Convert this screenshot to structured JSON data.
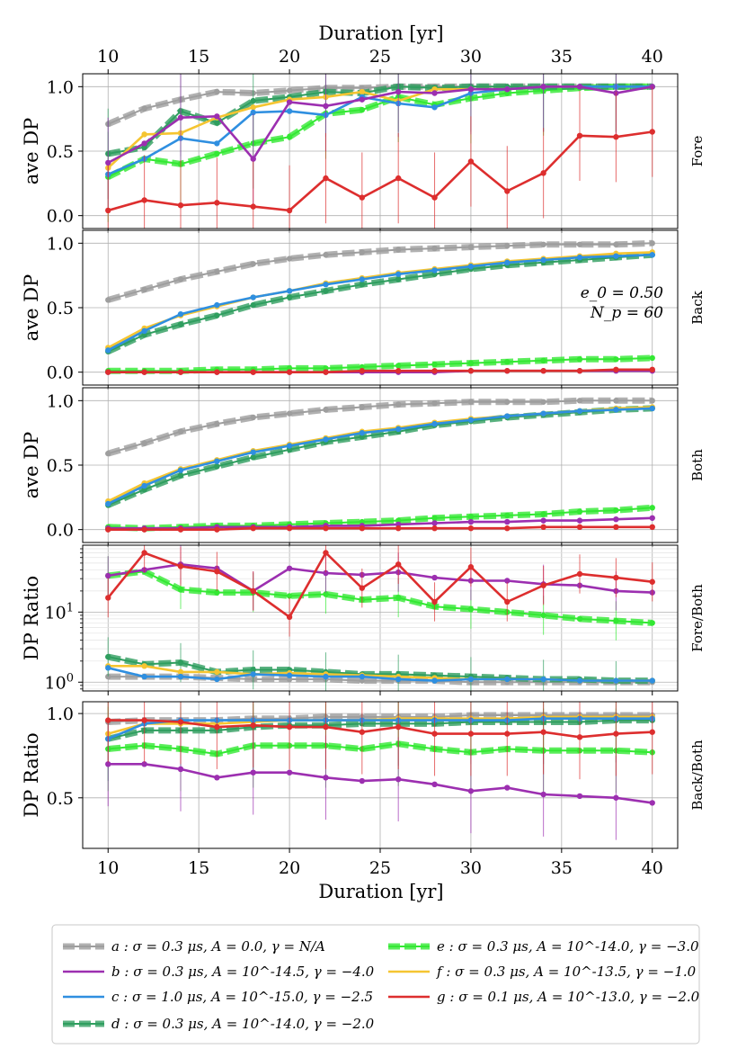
{
  "chart_data": {
    "type": "line",
    "x_label_top": "Duration [yr]",
    "x_label_bottom": "Duration [yr]",
    "x_ticks": [
      "10",
      "15",
      "20",
      "25",
      "30",
      "35",
      "40"
    ],
    "xlim": [
      8.6,
      41.4
    ],
    "x": [
      10,
      12,
      14,
      16,
      18,
      20,
      22,
      24,
      26,
      28,
      30,
      32,
      34,
      36,
      38,
      40
    ],
    "annotation": {
      "line1": "e_0 = 0.50",
      "line2": "N_p = 60"
    },
    "legend": [
      {
        "key": "a",
        "label": "a : σ = 0.3 μs, A = 0.0, γ = N/A",
        "color": "#9e9e9e",
        "style": "dashed-thick"
      },
      {
        "key": "b",
        "label": "b : σ = 0.3 μs, A = 10^-14.5, γ = −4.0",
        "color": "#9c2fb0",
        "style": "solid"
      },
      {
        "key": "c",
        "label": "c : σ = 1.0 μs, A = 10^-15.0, γ = −2.5",
        "color": "#2f8fe0",
        "style": "solid"
      },
      {
        "key": "d",
        "label": "d : σ = 0.3 μs, A = 10^-14.0, γ = −2.0",
        "color": "#2f9e5f",
        "style": "dashed-thick"
      },
      {
        "key": "e",
        "label": "e : σ = 0.3 μs, A = 10^-14.0, γ = −3.0",
        "color": "#33e833",
        "style": "dashed-thick"
      },
      {
        "key": "f",
        "label": "f : σ = 0.3 μs, A = 10^-13.5, γ = −1.0",
        "color": "#f5c531",
        "style": "solid"
      },
      {
        "key": "g",
        "label": "g : σ = 0.1 μs, A = 10^-13.0, γ = −2.0",
        "color": "#dd2e2e",
        "style": "solid"
      }
    ],
    "panels": [
      {
        "side_label": "Fore",
        "ylabel": "ave DP",
        "scale": "linear",
        "ylim": [
          -0.1,
          1.1
        ],
        "y_ticks": [
          0.0,
          0.5,
          1.0
        ],
        "y_tick_labels": [
          "0.0",
          "0.5",
          "1.0"
        ],
        "series": {
          "a": [
            0.71,
            0.83,
            0.9,
            0.96,
            0.95,
            0.97,
            0.99,
            0.99,
            1.0,
            1.0,
            1.0,
            1.0,
            1.0,
            1.0,
            1.0,
            1.0
          ],
          "b": [
            0.41,
            0.56,
            0.76,
            0.77,
            0.44,
            0.88,
            0.85,
            0.9,
            0.96,
            0.95,
            0.98,
            0.98,
            1.0,
            1.0,
            0.95,
            1.0
          ],
          "c": [
            0.32,
            0.44,
            0.6,
            0.56,
            0.8,
            0.81,
            0.78,
            0.92,
            0.87,
            0.84,
            0.95,
            0.98,
            1.0,
            1.0,
            1.0,
            1.0
          ],
          "d": [
            0.48,
            0.53,
            0.81,
            0.72,
            0.89,
            0.92,
            0.96,
            0.95,
            1.0,
            0.99,
            1.0,
            1.0,
            1.0,
            1.0,
            1.0,
            1.0
          ],
          "e": [
            0.3,
            0.44,
            0.4,
            0.48,
            0.56,
            0.61,
            0.79,
            0.82,
            0.92,
            0.86,
            0.91,
            0.95,
            0.97,
            0.99,
            1.0,
            1.0
          ],
          "f": [
            0.37,
            0.63,
            0.64,
            0.76,
            0.84,
            0.9,
            0.92,
            0.96,
            0.89,
            0.98,
            0.98,
            0.98,
            1.0,
            1.0,
            1.0,
            1.0
          ],
          "g": [
            0.04,
            0.12,
            0.08,
            0.1,
            0.07,
            0.04,
            0.29,
            0.14,
            0.29,
            0.14,
            0.42,
            0.19,
            0.33,
            0.62,
            0.61,
            0.65
          ]
        }
      },
      {
        "side_label": "Back",
        "ylabel": "ave DP",
        "scale": "linear",
        "ylim": [
          -0.1,
          1.1
        ],
        "y_ticks": [
          0.0,
          0.5,
          1.0
        ],
        "y_tick_labels": [
          "0.0",
          "0.5",
          "1.0"
        ],
        "series": {
          "a": [
            0.56,
            0.64,
            0.72,
            0.78,
            0.84,
            0.88,
            0.91,
            0.93,
            0.95,
            0.96,
            0.97,
            0.98,
            0.99,
            0.99,
            0.99,
            1.0
          ],
          "b": [
            0.0,
            0.0,
            0.0,
            0.0,
            0.0,
            0.0,
            0.0,
            0.0,
            0.0,
            0.0,
            0.01,
            0.01,
            0.01,
            0.01,
            0.01,
            0.01
          ],
          "c": [
            0.17,
            0.32,
            0.45,
            0.52,
            0.58,
            0.63,
            0.68,
            0.72,
            0.76,
            0.79,
            0.82,
            0.85,
            0.87,
            0.89,
            0.9,
            0.91
          ],
          "d": [
            0.16,
            0.29,
            0.37,
            0.44,
            0.52,
            0.58,
            0.63,
            0.68,
            0.72,
            0.76,
            0.8,
            0.83,
            0.85,
            0.87,
            0.89,
            0.91
          ],
          "e": [
            0.01,
            0.01,
            0.01,
            0.02,
            0.02,
            0.03,
            0.03,
            0.04,
            0.05,
            0.06,
            0.07,
            0.08,
            0.09,
            0.1,
            0.1,
            0.11
          ],
          "f": [
            0.19,
            0.34,
            0.44,
            0.51,
            0.58,
            0.63,
            0.69,
            0.73,
            0.77,
            0.8,
            0.83,
            0.86,
            0.88,
            0.9,
            0.92,
            0.93
          ],
          "g": [
            0.0,
            0.0,
            0.0,
            0.0,
            0.0,
            0.0,
            0.0,
            0.01,
            0.01,
            0.01,
            0.01,
            0.01,
            0.01,
            0.01,
            0.02,
            0.02
          ]
        }
      },
      {
        "side_label": "Both",
        "ylabel": "ave DP",
        "scale": "linear",
        "ylim": [
          -0.1,
          1.1
        ],
        "y_ticks": [
          0.0,
          0.5,
          1.0
        ],
        "y_tick_labels": [
          "0.0",
          "0.5",
          "1.0"
        ],
        "series": {
          "a": [
            0.59,
            0.67,
            0.76,
            0.82,
            0.87,
            0.9,
            0.93,
            0.95,
            0.97,
            0.98,
            0.99,
            0.99,
            0.99,
            1.0,
            1.0,
            1.0
          ],
          "b": [
            0.01,
            0.01,
            0.01,
            0.02,
            0.02,
            0.02,
            0.03,
            0.03,
            0.04,
            0.05,
            0.06,
            0.06,
            0.07,
            0.07,
            0.08,
            0.09
          ],
          "c": [
            0.2,
            0.34,
            0.46,
            0.53,
            0.6,
            0.65,
            0.7,
            0.75,
            0.78,
            0.82,
            0.85,
            0.88,
            0.9,
            0.92,
            0.93,
            0.94
          ],
          "d": [
            0.19,
            0.31,
            0.42,
            0.49,
            0.56,
            0.62,
            0.68,
            0.72,
            0.76,
            0.81,
            0.84,
            0.87,
            0.89,
            0.91,
            0.93,
            0.94
          ],
          "e": [
            0.02,
            0.01,
            0.02,
            0.03,
            0.03,
            0.04,
            0.05,
            0.06,
            0.07,
            0.09,
            0.1,
            0.11,
            0.12,
            0.14,
            0.15,
            0.17
          ],
          "f": [
            0.22,
            0.36,
            0.47,
            0.54,
            0.61,
            0.66,
            0.71,
            0.76,
            0.79,
            0.83,
            0.86,
            0.88,
            0.9,
            0.92,
            0.94,
            0.95
          ],
          "g": [
            0.0,
            0.0,
            0.0,
            0.0,
            0.01,
            0.01,
            0.01,
            0.01,
            0.01,
            0.01,
            0.01,
            0.01,
            0.02,
            0.02,
            0.02,
            0.02
          ]
        }
      },
      {
        "side_label": "Fore/Both",
        "ylabel": "DP Ratio",
        "scale": "log",
        "ylim": [
          0.75,
          90
        ],
        "y_ticks": [
          1,
          10
        ],
        "y_tick_labels": [
          "10^0",
          "10^1"
        ],
        "series": {
          "a": [
            1.2,
            1.2,
            1.2,
            1.15,
            1.1,
            1.1,
            1.1,
            1.05,
            1.05,
            1.05,
            1.0,
            1.0,
            1.0,
            1.0,
            1.0,
            1.0
          ],
          "b": [
            33,
            40,
            48,
            42,
            20,
            42,
            36,
            34,
            37,
            31,
            28,
            28,
            25,
            24,
            20,
            19
          ],
          "c": [
            1.6,
            1.2,
            1.2,
            1.1,
            1.3,
            1.25,
            1.2,
            1.2,
            1.1,
            1.05,
            1.1,
            1.1,
            1.1,
            1.05,
            1.05,
            1.05
          ],
          "d": [
            2.3,
            1.8,
            1.9,
            1.4,
            1.5,
            1.5,
            1.4,
            1.3,
            1.3,
            1.25,
            1.2,
            1.15,
            1.1,
            1.1,
            1.05,
            1.05
          ],
          "e": [
            33,
            38,
            21,
            19,
            19,
            17,
            18,
            15,
            16,
            12,
            11,
            10,
            9,
            8,
            7.5,
            7
          ],
          "f": [
            1.7,
            1.7,
            1.4,
            1.4,
            1.3,
            1.35,
            1.3,
            1.25,
            1.2,
            1.15,
            1.1,
            1.1,
            1.1,
            1.05,
            1.05,
            1.05
          ],
          "g": [
            16,
            70,
            45,
            38,
            20,
            8.5,
            70,
            22,
            48,
            14,
            44,
            14,
            24,
            35,
            31,
            27
          ]
        }
      },
      {
        "side_label": "Back/Both",
        "ylabel": "DP Ratio",
        "scale": "linear",
        "ylim": [
          0.2,
          1.07
        ],
        "y_ticks": [
          0.5,
          1.0
        ],
        "y_tick_labels": [
          "0.5",
          "1.0"
        ],
        "series": {
          "a": [
            0.95,
            0.96,
            0.96,
            0.96,
            0.97,
            0.97,
            0.98,
            0.98,
            0.98,
            0.98,
            0.99,
            0.99,
            0.99,
            0.99,
            0.99,
            0.99
          ],
          "b": [
            0.7,
            0.7,
            0.67,
            0.62,
            0.65,
            0.65,
            0.62,
            0.6,
            0.61,
            0.58,
            0.54,
            0.56,
            0.52,
            0.51,
            0.5,
            0.47
          ],
          "c": [
            0.85,
            0.94,
            0.96,
            0.96,
            0.96,
            0.96,
            0.96,
            0.96,
            0.96,
            0.96,
            0.96,
            0.96,
            0.97,
            0.97,
            0.97,
            0.97
          ],
          "d": [
            0.85,
            0.9,
            0.9,
            0.9,
            0.92,
            0.93,
            0.93,
            0.94,
            0.94,
            0.94,
            0.95,
            0.95,
            0.95,
            0.95,
            0.96,
            0.96
          ],
          "e": [
            0.79,
            0.81,
            0.79,
            0.76,
            0.81,
            0.81,
            0.81,
            0.79,
            0.82,
            0.79,
            0.77,
            0.79,
            0.78,
            0.78,
            0.78,
            0.77
          ],
          "f": [
            0.88,
            0.94,
            0.94,
            0.94,
            0.95,
            0.96,
            0.96,
            0.96,
            0.97,
            0.97,
            0.97,
            0.97,
            0.98,
            0.98,
            0.98,
            0.98
          ],
          "g": [
            0.96,
            0.96,
            0.95,
            0.92,
            0.93,
            0.92,
            0.92,
            0.89,
            0.92,
            0.88,
            0.88,
            0.88,
            0.89,
            0.86,
            0.88,
            0.89
          ]
        }
      }
    ]
  }
}
